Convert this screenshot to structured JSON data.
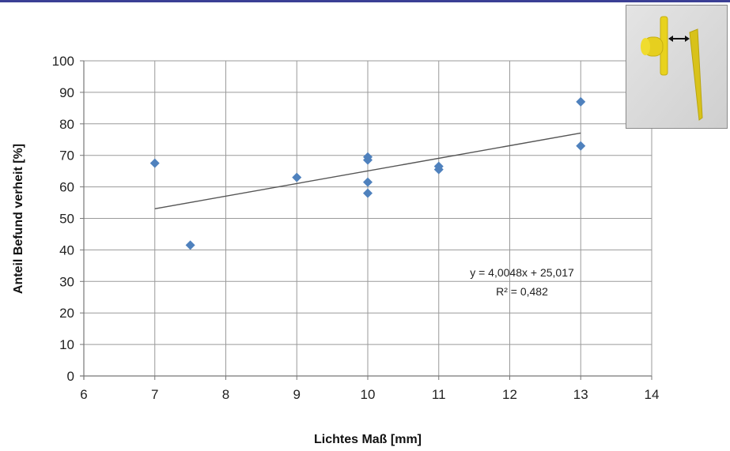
{
  "chart_data": {
    "type": "scatter",
    "title": "",
    "xlabel": "Lichtes Maß [mm]",
    "ylabel": "Anteil Befund verheit [%]",
    "xlim": [
      6,
      14
    ],
    "ylim": [
      0,
      100
    ],
    "x_ticks": [
      6,
      7,
      8,
      9,
      10,
      11,
      12,
      13,
      14
    ],
    "y_ticks": [
      0,
      10,
      20,
      30,
      40,
      50,
      60,
      70,
      80,
      90,
      100
    ],
    "grid": true,
    "legend": "none",
    "marker_color": "#4f81bd",
    "points": [
      {
        "x": 7,
        "y": 67.5
      },
      {
        "x": 7.5,
        "y": 41.5
      },
      {
        "x": 9,
        "y": 63
      },
      {
        "x": 10,
        "y": 69.5
      },
      {
        "x": 10,
        "y": 68.5
      },
      {
        "x": 10,
        "y": 61.5
      },
      {
        "x": 10,
        "y": 58
      },
      {
        "x": 11,
        "y": 66.5
      },
      {
        "x": 11,
        "y": 65.5
      },
      {
        "x": 13,
        "y": 87
      },
      {
        "x": 13,
        "y": 73
      }
    ],
    "trendline": {
      "type": "linear",
      "slope": 4.0048,
      "intercept": 25.017,
      "x_range": [
        7,
        13
      ],
      "equation": "y = 4,0048x + 25,017",
      "r_squared": "R² = 0,482",
      "color": "#555555"
    }
  },
  "inset": {
    "description_icon": "yellow-clip-photo-icon",
    "part_color": "#e8d21e",
    "arrow_icon": "double-arrow-icon"
  }
}
